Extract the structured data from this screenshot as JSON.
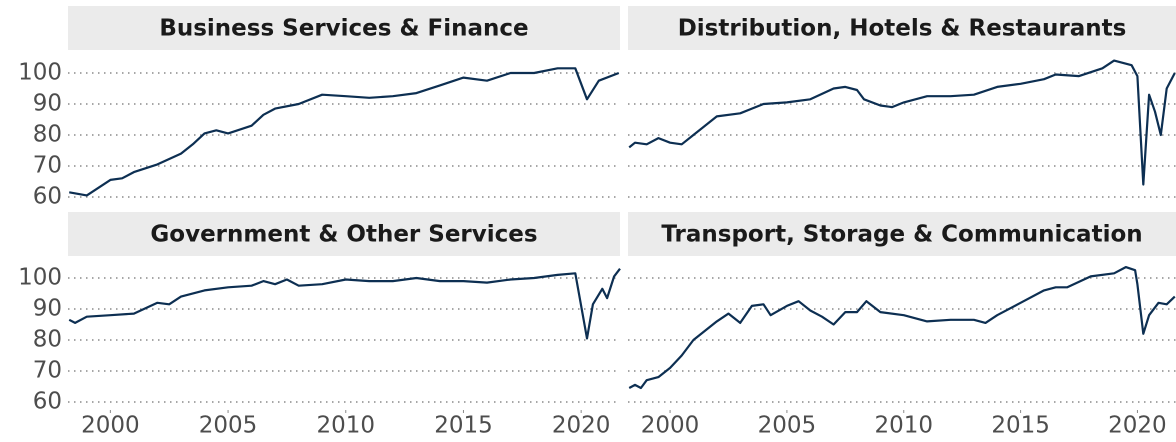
{
  "chart_data": [
    {
      "type": "line",
      "title": "Business Services & Finance",
      "color": "#0d2f52",
      "grid": true,
      "xlim": [
        1998.2,
        2021.65
      ],
      "ylim": [
        57.4,
        105.8
      ],
      "yticks": [
        60,
        70,
        80,
        90,
        100
      ],
      "x": [
        1998.25,
        1999,
        2000,
        2000.5,
        2001,
        2002,
        2003,
        2003.5,
        2004,
        2004.5,
        2005,
        2006,
        2006.5,
        2007,
        2008,
        2009,
        2010,
        2011,
        2012,
        2013,
        2014,
        2015,
        2016,
        2017,
        2018,
        2019,
        2019.75,
        2020.25,
        2020.75,
        2021.6
      ],
      "values": [
        61.5,
        60.5,
        65.5,
        66,
        68,
        70.5,
        74,
        77,
        80.5,
        81.5,
        80.5,
        83,
        86.5,
        88.5,
        90,
        93,
        92.5,
        92,
        92.5,
        93.5,
        96,
        98.5,
        97.5,
        100,
        100,
        101.5,
        101.5,
        91.5,
        97.5,
        100
      ]
    },
    {
      "type": "line",
      "title": "Distribution, Hotels & Restaurants",
      "color": "#0d2f52",
      "grid": true,
      "xlim": [
        1998.2,
        2021.65
      ],
      "ylim": [
        57.4,
        105.8
      ],
      "yticks": [
        60,
        70,
        80,
        90,
        100
      ],
      "x": [
        1998.25,
        1998.5,
        1999,
        1999.5,
        2000,
        2000.5,
        2001,
        2002,
        2003,
        2003.5,
        2004,
        2005,
        2006,
        2007,
        2007.5,
        2008,
        2008.3,
        2009,
        2009.5,
        2010,
        2011,
        2012,
        2013,
        2014,
        2015,
        2016,
        2016.5,
        2017.5,
        2018.5,
        2019,
        2019.75,
        2020,
        2020.25,
        2020.5,
        2020.75,
        2021,
        2021.25,
        2021.6
      ],
      "values": [
        76,
        77.5,
        77,
        79,
        77.5,
        77,
        80,
        86,
        87,
        88.5,
        90,
        90.5,
        91.5,
        95,
        95.5,
        94.5,
        91.5,
        89.5,
        89,
        90.5,
        92.5,
        92.5,
        93,
        95.5,
        96.5,
        98,
        99.5,
        99,
        101.5,
        104,
        102.5,
        99,
        64,
        93,
        87.5,
        80,
        95,
        100
      ]
    },
    {
      "type": "line",
      "title": "Government & Other Services",
      "color": "#0d2f52",
      "grid": true,
      "xlim": [
        1998.2,
        2021.65
      ],
      "ylim": [
        57.4,
        105.8
      ],
      "yticks": [
        60,
        70,
        80,
        90,
        100
      ],
      "xticks": [
        2000,
        2005,
        2010,
        2015,
        2020
      ],
      "x": [
        1998.25,
        1998.5,
        1999,
        2000,
        2001,
        2002,
        2002.5,
        2003,
        2004,
        2005,
        2006,
        2006.5,
        2007,
        2007.5,
        2008,
        2009,
        2010,
        2011,
        2012,
        2013,
        2014,
        2015,
        2016,
        2017,
        2018,
        2019,
        2019.75,
        2020.25,
        2020.5,
        2020.9,
        2021.1,
        2021.4,
        2021.65
      ],
      "values": [
        86.5,
        85.5,
        87.5,
        88,
        88.5,
        92,
        91.5,
        94,
        96,
        97,
        97.5,
        99,
        98,
        99.5,
        97.5,
        98,
        99.5,
        99,
        99,
        100,
        99,
        99,
        98.5,
        99.5,
        100,
        101,
        101.5,
        80.5,
        91.5,
        96.5,
        93.5,
        100.5,
        103
      ]
    },
    {
      "type": "line",
      "title": "Transport, Storage & Communication",
      "color": "#0d2f52",
      "grid": true,
      "xlim": [
        1998.2,
        2021.65
      ],
      "ylim": [
        57.4,
        105.8
      ],
      "yticks": [
        60,
        70,
        80,
        90,
        100
      ],
      "xticks": [
        2000,
        2005,
        2010,
        2015,
        2020
      ],
      "x": [
        1998.25,
        1998.5,
        1998.75,
        1999,
        1999.5,
        2000,
        2000.5,
        2001,
        2002,
        2002.5,
        2003,
        2003.5,
        2004,
        2004.3,
        2005,
        2005.5,
        2006,
        2006.5,
        2007,
        2007.5,
        2008,
        2008.4,
        2009,
        2010,
        2011,
        2012,
        2013,
        2013.5,
        2014,
        2015,
        2016,
        2016.5,
        2017,
        2018,
        2019,
        2019.5,
        2019.9,
        2020,
        2020.25,
        2020.5,
        2020.9,
        2021.25,
        2021.6
      ],
      "values": [
        64.5,
        65.5,
        64.5,
        67,
        68,
        71,
        75,
        80,
        86,
        88.5,
        85.5,
        91,
        91.5,
        88,
        91,
        92.5,
        89.5,
        87.5,
        85,
        89,
        89,
        92.5,
        89,
        88,
        86,
        86.5,
        86.5,
        85.5,
        88,
        92,
        96,
        97,
        97,
        100.5,
        101.5,
        103.5,
        102.5,
        98,
        82,
        88,
        92,
        91.5,
        94
      ]
    }
  ]
}
